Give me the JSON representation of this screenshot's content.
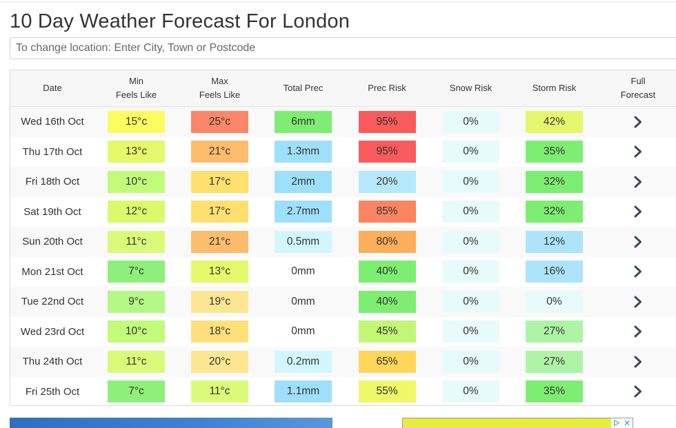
{
  "page": {
    "title": "10 Day Weather Forecast For London"
  },
  "search": {
    "placeholder": "To change location: Enter City, Town or Postcode"
  },
  "table": {
    "headers": [
      {
        "line1": "Date",
        "line2": ""
      },
      {
        "line1": "Min",
        "line2": "Feels Like"
      },
      {
        "line1": "Max",
        "line2": "Feels Like"
      },
      {
        "line1": "Total Prec",
        "line2": ""
      },
      {
        "line1": "Prec Risk",
        "line2": ""
      },
      {
        "line1": "Snow Risk",
        "line2": ""
      },
      {
        "line1": "Storm Risk",
        "line2": ""
      },
      {
        "line1": "Full",
        "line2": "Forecast"
      }
    ],
    "rows": [
      {
        "date": "Wed 16th Oct",
        "min": "15°c",
        "max": "25°c",
        "prec": "6mm",
        "prec_risk": "95%",
        "snow": "0%",
        "storm": "42%",
        "colors": {
          "min": "#fcfc60",
          "max": "#fb8668",
          "prec": "#7eee72",
          "prec_risk": "#f85b5b",
          "snow": "#e8fbfb",
          "storm": "#e4f86c"
        }
      },
      {
        "date": "Thu 17th Oct",
        "min": "13°c",
        "max": "21°c",
        "prec": "1.3mm",
        "prec_risk": "95%",
        "snow": "0%",
        "storm": "35%",
        "colors": {
          "min": "#e4fa6a",
          "max": "#fcbc6c",
          "prec": "#9ee0fb",
          "prec_risk": "#f85b5b",
          "snow": "#e8fbfb",
          "storm": "#7eee72"
        }
      },
      {
        "date": "Fri 18th Oct",
        "min": "10°c",
        "max": "17°c",
        "prec": "2mm",
        "prec_risk": "20%",
        "snow": "0%",
        "storm": "32%",
        "colors": {
          "min": "#c2fa7a",
          "max": "#fde06e",
          "prec": "#9ee0fb",
          "prec_risk": "#b6e8fb",
          "snow": "#e8fbfb",
          "storm": "#7eee72"
        }
      },
      {
        "date": "Sat 19th Oct",
        "min": "12°c",
        "max": "17°c",
        "prec": "2.7mm",
        "prec_risk": "85%",
        "snow": "0%",
        "storm": "32%",
        "colors": {
          "min": "#dafa6c",
          "max": "#fde06e",
          "prec": "#9ee0fb",
          "prec_risk": "#fa8560",
          "snow": "#e8fbfb",
          "storm": "#7eee72"
        }
      },
      {
        "date": "Sun 20th Oct",
        "min": "11°c",
        "max": "21°c",
        "prec": "0.5mm",
        "prec_risk": "80%",
        "snow": "0%",
        "storm": "12%",
        "colors": {
          "min": "#dafa7a",
          "max": "#fcbc6c",
          "prec": "#d2f7fb",
          "prec_risk": "#fcae5a",
          "snow": "#e8fbfb",
          "storm": "#aee4fb"
        }
      },
      {
        "date": "Mon 21st Oct",
        "min": "7°c",
        "max": "13°c",
        "prec": "0mm",
        "prec_risk": "40%",
        "snow": "0%",
        "storm": "16%",
        "colors": {
          "min": "#8ef07a",
          "max": "#e4fa6a",
          "prec": "#ffffff",
          "prec_risk": "#7eee72",
          "snow": "#e8fbfb",
          "storm": "#aee4fb"
        }
      },
      {
        "date": "Tue 22nd Oct",
        "min": "9°c",
        "max": "19°c",
        "prec": "0mm",
        "prec_risk": "40%",
        "snow": "0%",
        "storm": "0%",
        "colors": {
          "min": "#b4f886",
          "max": "#fde692",
          "prec": "#f9f9f9",
          "prec_risk": "#7eee72",
          "snow": "#e8fbfb",
          "storm": "#e8fbfb"
        }
      },
      {
        "date": "Wed 23rd Oct",
        "min": "10°c",
        "max": "18°c",
        "prec": "0mm",
        "prec_risk": "45%",
        "snow": "0%",
        "storm": "27%",
        "colors": {
          "min": "#c2fa7a",
          "max": "#fde07a",
          "prec": "#ffffff",
          "prec_risk": "#c2f676",
          "snow": "#e8fbfb",
          "storm": "#aef4a6"
        }
      },
      {
        "date": "Thu 24th Oct",
        "min": "11°c",
        "max": "20°c",
        "prec": "0.2mm",
        "prec_risk": "65%",
        "snow": "0%",
        "storm": "27%",
        "colors": {
          "min": "#dafa7a",
          "max": "#fde692",
          "prec": "#d2f7fb",
          "prec_risk": "#fdd65a",
          "snow": "#e8fbfb",
          "storm": "#aef4a6"
        }
      },
      {
        "date": "Fri 25th Oct",
        "min": "7°c",
        "max": "11°c",
        "prec": "1.1mm",
        "prec_risk": "55%",
        "snow": "0%",
        "storm": "35%",
        "colors": {
          "min": "#8ef07a",
          "max": "#dafa7a",
          "prec": "#9ee0fb",
          "prec_risk": "#eef868",
          "snow": "#e8fbfb",
          "storm": "#7eee72"
        }
      }
    ],
    "action_icon": "chevron-right-icon",
    "chevron_color": "#3a4a5a"
  },
  "ads": {
    "choices_icons": [
      "ad-info-icon",
      "ad-close-icon"
    ],
    "info_glyph": "ᐅ",
    "close_glyph": "✕"
  }
}
